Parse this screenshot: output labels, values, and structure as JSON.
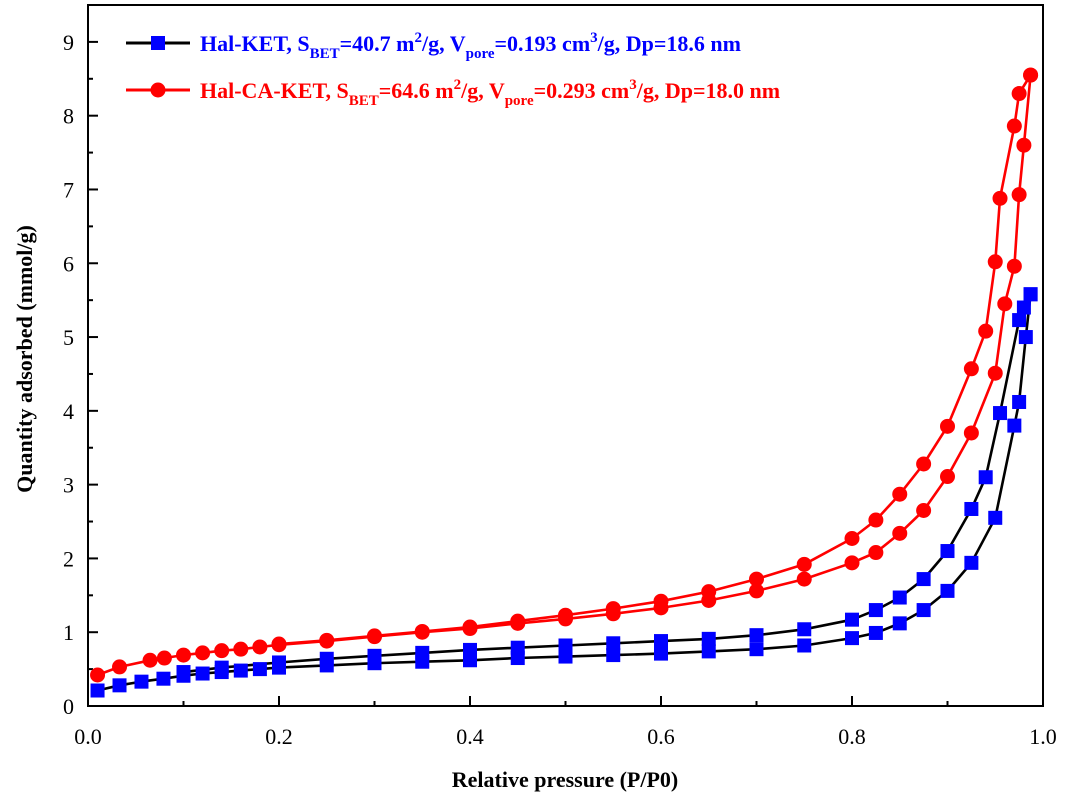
{
  "chart_data": {
    "type": "line",
    "xlabel": "Relative pressure (P/P0)",
    "ylabel": "Quantity adsorbed (mmol/g)",
    "xlim": [
      0.0,
      1.0
    ],
    "ylim": [
      0,
      9.5
    ],
    "x_ticks": [
      "0.0",
      "0.2",
      "0.4",
      "0.6",
      "0.8",
      "1.0"
    ],
    "y_ticks": [
      "0",
      "1",
      "2",
      "3",
      "4",
      "5",
      "6",
      "7",
      "8",
      "9"
    ],
    "legend_position": "top-left",
    "grid": false,
    "series": [
      {
        "name": "Hal-KET, S_BET=40.7 m^2/g, V_pore=0.193 cm^3/g, Dp=18.6 nm",
        "legend": {
          "prefix": "Hal-KET, S",
          "bet_sub": "BET",
          "s_value": "=40.7 m",
          "m_sup": "2",
          "after_m": "/g, V",
          "pore_sub": "pore",
          "v_value": "=0.193 cm",
          "cm_sup": "3",
          "suffix": "/g, Dp=18.6 nm"
        },
        "color": "#0000ff",
        "line_color": "#000000",
        "marker": "square",
        "adsorption": [
          [
            0.01,
            0.21
          ],
          [
            0.033,
            0.28
          ],
          [
            0.056,
            0.33
          ],
          [
            0.079,
            0.37
          ],
          [
            0.1,
            0.41
          ],
          [
            0.12,
            0.44
          ],
          [
            0.14,
            0.46
          ],
          [
            0.16,
            0.48
          ],
          [
            0.18,
            0.5
          ],
          [
            0.2,
            0.52
          ],
          [
            0.25,
            0.55
          ],
          [
            0.3,
            0.58
          ],
          [
            0.35,
            0.6
          ],
          [
            0.4,
            0.62
          ],
          [
            0.45,
            0.65
          ],
          [
            0.5,
            0.67
          ],
          [
            0.55,
            0.69
          ],
          [
            0.6,
            0.71
          ],
          [
            0.65,
            0.74
          ],
          [
            0.7,
            0.77
          ],
          [
            0.75,
            0.82
          ],
          [
            0.8,
            0.92
          ],
          [
            0.825,
            0.99
          ],
          [
            0.85,
            1.12
          ],
          [
            0.875,
            1.3
          ],
          [
            0.9,
            1.56
          ],
          [
            0.925,
            1.94
          ],
          [
            0.95,
            2.55
          ],
          [
            0.97,
            3.8
          ],
          [
            0.975,
            4.12
          ],
          [
            0.982,
            5.0
          ],
          [
            0.987,
            5.58
          ]
        ],
        "desorption": [
          [
            0.987,
            5.58
          ],
          [
            0.98,
            5.4
          ],
          [
            0.975,
            5.23
          ],
          [
            0.955,
            3.97
          ],
          [
            0.94,
            3.1
          ],
          [
            0.925,
            2.67
          ],
          [
            0.9,
            2.1
          ],
          [
            0.875,
            1.72
          ],
          [
            0.85,
            1.47
          ],
          [
            0.825,
            1.3
          ],
          [
            0.8,
            1.17
          ],
          [
            0.75,
            1.04
          ],
          [
            0.7,
            0.96
          ],
          [
            0.65,
            0.91
          ],
          [
            0.6,
            0.88
          ],
          [
            0.55,
            0.85
          ],
          [
            0.5,
            0.82
          ],
          [
            0.45,
            0.79
          ],
          [
            0.4,
            0.76
          ],
          [
            0.35,
            0.72
          ],
          [
            0.3,
            0.68
          ],
          [
            0.25,
            0.64
          ],
          [
            0.2,
            0.59
          ],
          [
            0.14,
            0.52
          ],
          [
            0.1,
            0.46
          ]
        ]
      },
      {
        "name": "Hal-CA-KET, S_BET=64.6 m^2/g, V_pore=0.293 cm^3/g, Dp=18.0 nm",
        "legend": {
          "prefix": "Hal-CA-KET, S",
          "bet_sub": "BET",
          "s_value": "=64.6 m",
          "m_sup": "2",
          "after_m": "/g, V",
          "pore_sub": "pore",
          "v_value": "=0.293 cm",
          "cm_sup": "3",
          "suffix": "/g, Dp=18.0 nm"
        },
        "color": "#ff0000",
        "line_color": "#ff0000",
        "marker": "circle",
        "adsorption": [
          [
            0.01,
            0.42
          ],
          [
            0.033,
            0.53
          ],
          [
            0.065,
            0.62
          ],
          [
            0.08,
            0.65
          ],
          [
            0.1,
            0.69
          ],
          [
            0.12,
            0.72
          ],
          [
            0.14,
            0.75
          ],
          [
            0.16,
            0.77
          ],
          [
            0.18,
            0.8
          ],
          [
            0.2,
            0.83
          ],
          [
            0.25,
            0.88
          ],
          [
            0.3,
            0.94
          ],
          [
            0.35,
            1.0
          ],
          [
            0.4,
            1.05
          ],
          [
            0.45,
            1.12
          ],
          [
            0.5,
            1.18
          ],
          [
            0.55,
            1.25
          ],
          [
            0.6,
            1.33
          ],
          [
            0.65,
            1.43
          ],
          [
            0.7,
            1.56
          ],
          [
            0.75,
            1.72
          ],
          [
            0.8,
            1.94
          ],
          [
            0.825,
            2.08
          ],
          [
            0.85,
            2.34
          ],
          [
            0.875,
            2.65
          ],
          [
            0.9,
            3.11
          ],
          [
            0.925,
            3.7
          ],
          [
            0.95,
            4.51
          ],
          [
            0.96,
            5.45
          ],
          [
            0.97,
            5.96
          ],
          [
            0.975,
            6.93
          ],
          [
            0.98,
            7.6
          ],
          [
            0.987,
            8.55
          ]
        ],
        "desorption": [
          [
            0.987,
            8.55
          ],
          [
            0.975,
            8.3
          ],
          [
            0.97,
            7.86
          ],
          [
            0.955,
            6.88
          ],
          [
            0.95,
            6.02
          ],
          [
            0.94,
            5.08
          ],
          [
            0.925,
            4.57
          ],
          [
            0.9,
            3.79
          ],
          [
            0.875,
            3.28
          ],
          [
            0.85,
            2.87
          ],
          [
            0.825,
            2.52
          ],
          [
            0.8,
            2.27
          ],
          [
            0.75,
            1.92
          ],
          [
            0.7,
            1.72
          ],
          [
            0.65,
            1.55
          ],
          [
            0.6,
            1.42
          ],
          [
            0.55,
            1.32
          ],
          [
            0.5,
            1.23
          ],
          [
            0.45,
            1.15
          ],
          [
            0.4,
            1.07
          ],
          [
            0.35,
            1.01
          ],
          [
            0.3,
            0.95
          ],
          [
            0.25,
            0.89
          ],
          [
            0.2,
            0.84
          ]
        ]
      }
    ]
  }
}
